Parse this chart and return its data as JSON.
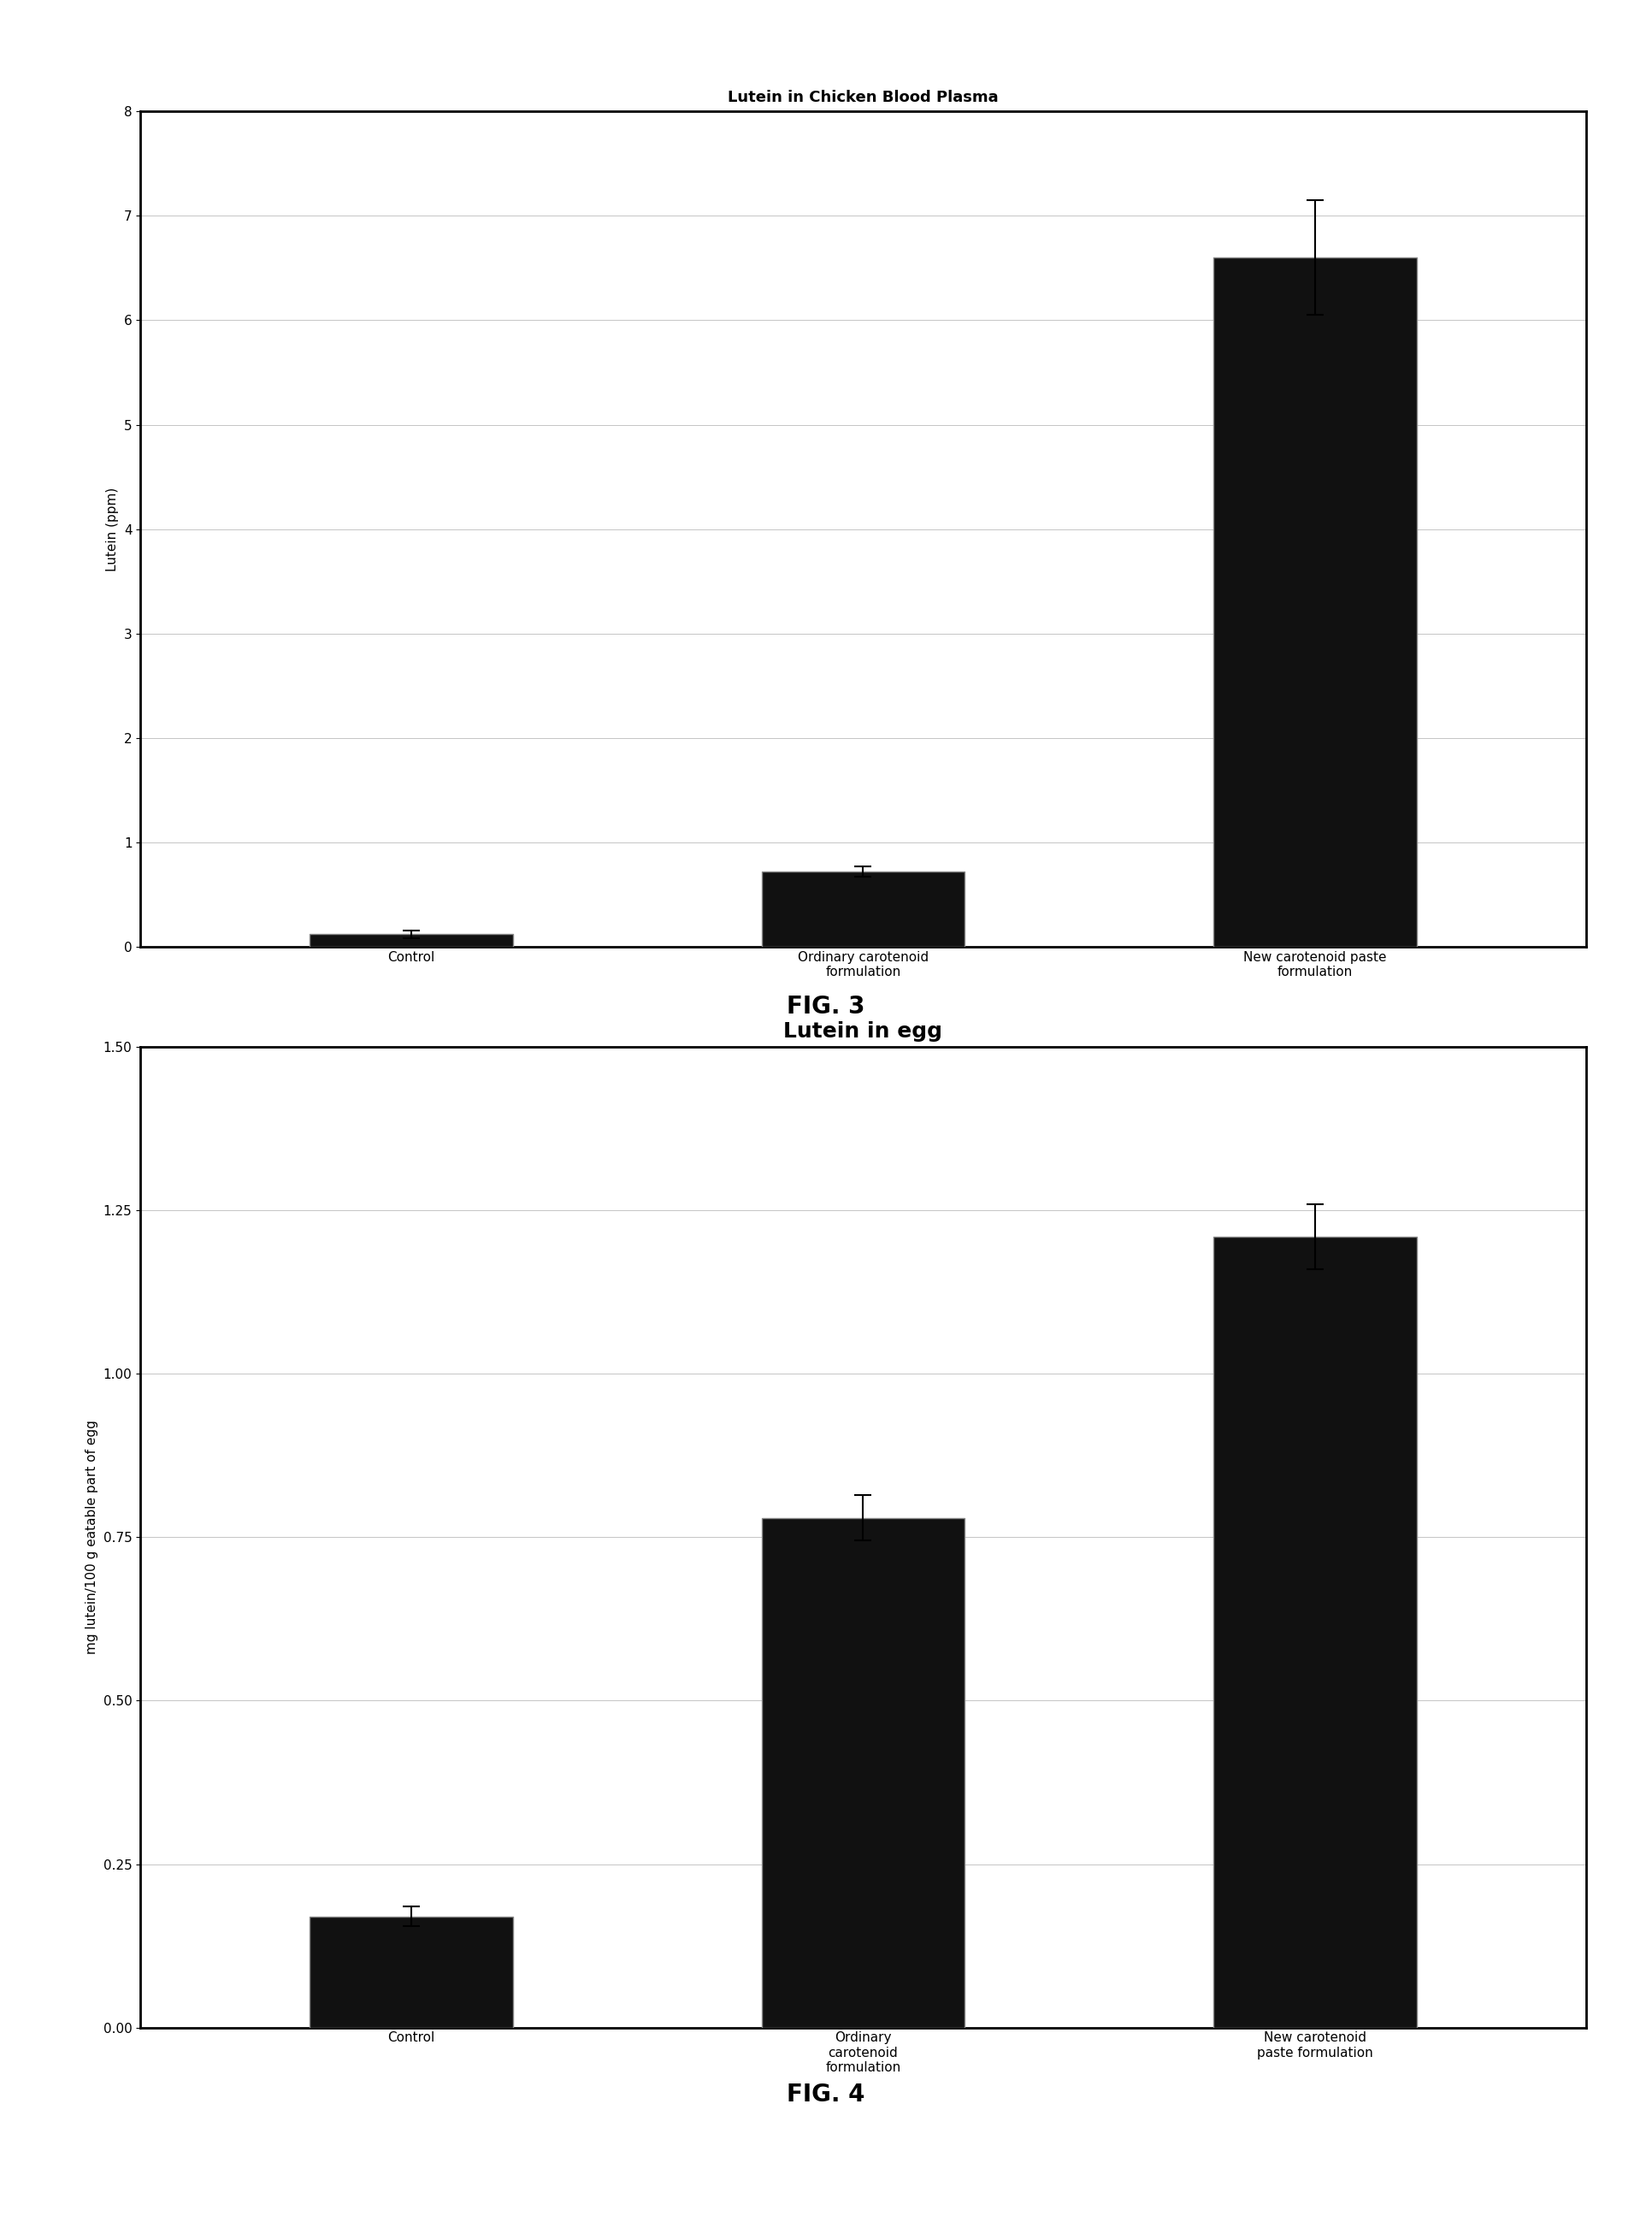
{
  "fig3": {
    "title": "Lutein in Chicken Blood Plasma",
    "title_fontsize": 13,
    "title_fontweight": "bold",
    "categories": [
      "Control",
      "Ordinary carotenoid\nformulation",
      "New carotenoid paste\nformulation"
    ],
    "values": [
      0.12,
      0.72,
      6.6
    ],
    "errors": [
      0.04,
      0.05,
      0.55
    ],
    "ylabel": "Lutein (ppm)",
    "ylim": [
      0,
      8
    ],
    "yticks": [
      0,
      1,
      2,
      3,
      4,
      5,
      6,
      7,
      8
    ],
    "bar_color": "#111111",
    "bar_edgecolor": "#888888",
    "bar_width": 0.45,
    "fignum": "FIG. 3",
    "grid_color": "#aaaaaa",
    "grid_linestyle": "-",
    "grid_linewidth": 0.6
  },
  "fig4": {
    "title": "Lutein in egg",
    "title_fontsize": 18,
    "title_fontweight": "bold",
    "categories": [
      "Control",
      "Ordinary\ncarotenoid\nformulation",
      "New carotenoid\npaste formulation"
    ],
    "values": [
      0.17,
      0.78,
      1.21
    ],
    "errors": [
      0.015,
      0.035,
      0.05
    ],
    "ylabel": "mg lutein/100 g eatable part of egg",
    "ylim": [
      0.0,
      1.5
    ],
    "yticks": [
      0.0,
      0.25,
      0.5,
      0.75,
      1.0,
      1.25,
      1.5
    ],
    "bar_color": "#111111",
    "bar_edgecolor": "#888888",
    "bar_width": 0.45,
    "fignum": "FIG. 4",
    "grid_color": "#aaaaaa",
    "grid_linestyle": "-",
    "grid_linewidth": 0.6
  },
  "background_color": "#ffffff",
  "ylabel_fontsize": 11,
  "tick_fontsize": 11,
  "label_fontsize": 11,
  "fignum_fontsize": 20,
  "spine_linewidth": 2.0
}
